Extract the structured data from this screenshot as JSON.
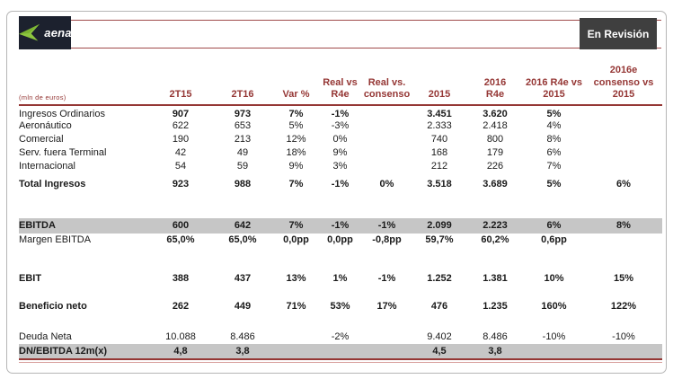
{
  "header": {
    "logo_text": "aena",
    "status": "En Revisión",
    "brand_green": "#8dc63f",
    "logo_bg": "#1c212e",
    "accent_maroon": "#953735",
    "band_gray": "#c6c6c6"
  },
  "table": {
    "unit_label": "(mln de euros)",
    "columns": [
      "2T15",
      "2T16",
      "Var %",
      "Real vs\nR4e",
      "Real vs.\nconsenso",
      "2015",
      "2016\nR4e",
      "2016 R4e vs\n2015",
      "2016e\nconsenso vs\n2015"
    ],
    "rows": [
      {
        "label": "Ingresos Ordinarios",
        "values": [
          "907",
          "973",
          "7%",
          "-1%",
          "",
          "3.451",
          "3.620",
          "5%",
          ""
        ],
        "bold_label": false,
        "bold_values": true,
        "band": false
      },
      {
        "label": "Aeronáutico",
        "values": [
          "622",
          "653",
          "5%",
          "-3%",
          "",
          "2.333",
          "2.418",
          "4%",
          ""
        ],
        "bold_label": false,
        "bold_values": false,
        "band": false
      },
      {
        "label": "Comercial",
        "values": [
          "190",
          "213",
          "12%",
          "0%",
          "",
          "740",
          "800",
          "8%",
          ""
        ],
        "bold_label": false,
        "bold_values": false,
        "band": false
      },
      {
        "label": "Serv. fuera Terminal",
        "values": [
          "42",
          "49",
          "18%",
          "9%",
          "",
          "168",
          "179",
          "6%",
          ""
        ],
        "bold_label": false,
        "bold_values": false,
        "band": false
      },
      {
        "label": "Internacional",
        "values": [
          "54",
          "59",
          "9%",
          "3%",
          "",
          "212",
          "226",
          "7%",
          ""
        ],
        "bold_label": false,
        "bold_values": false,
        "band": false
      },
      {
        "spacer": true,
        "h": 5
      },
      {
        "label": "Total Ingresos",
        "values": [
          "923",
          "988",
          "7%",
          "-1%",
          "0%",
          "3.518",
          "3.689",
          "5%",
          "6%"
        ],
        "bold_label": true,
        "bold_values": true,
        "band": false
      },
      {
        "spacer": true,
        "h": 30
      },
      {
        "label": "EBITDA",
        "values": [
          "600",
          "642",
          "7%",
          "-1%",
          "-1%",
          "2.099",
          "2.223",
          "6%",
          "8%"
        ],
        "bold_label": true,
        "bold_values": true,
        "band": true
      },
      {
        "label": "Margen EBITDA",
        "values": [
          "65,0%",
          "65,0%",
          "0,0pp",
          "0,0pp",
          "-0,8pp",
          "59,7%",
          "60,2%",
          "0,6pp",
          ""
        ],
        "bold_label": false,
        "bold_values": true,
        "band": false
      },
      {
        "spacer": true,
        "h": 28
      },
      {
        "label": "EBIT",
        "values": [
          "388",
          "437",
          "13%",
          "1%",
          "-1%",
          "1.252",
          "1.381",
          "10%",
          "15%"
        ],
        "bold_label": true,
        "bold_values": true,
        "band": false
      },
      {
        "spacer": true,
        "h": 16
      },
      {
        "label": "Beneficio neto",
        "values": [
          "262",
          "449",
          "71%",
          "53%",
          "17%",
          "476",
          "1.235",
          "160%",
          "122%"
        ],
        "bold_label": true,
        "bold_values": true,
        "band": false
      },
      {
        "spacer": true,
        "h": 19
      },
      {
        "label": "Deuda Neta",
        "values": [
          "10.088",
          "8.486",
          "",
          "-2%",
          "",
          "9.402",
          "8.486",
          "-10%",
          "-10%"
        ],
        "bold_label": false,
        "bold_values": false,
        "band": false
      },
      {
        "label": "DN/EBITDA 12m(x)",
        "values": [
          "4,8",
          "3,8",
          "",
          "",
          "",
          "4,5",
          "3,8",
          "",
          ""
        ],
        "bold_label": true,
        "bold_values": true,
        "band": true
      }
    ]
  }
}
